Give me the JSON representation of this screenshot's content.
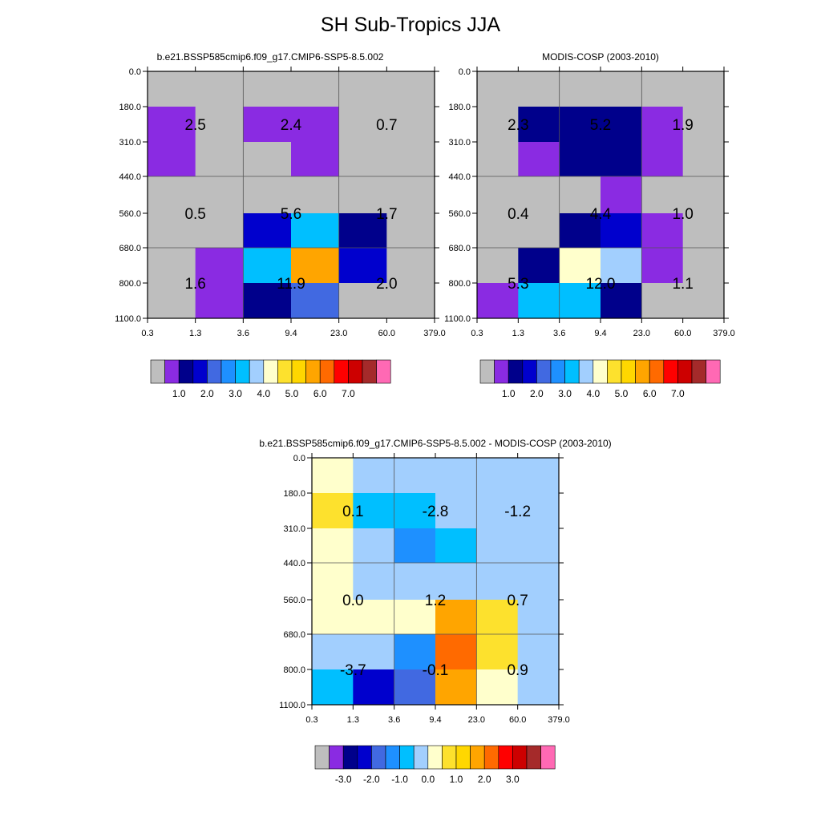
{
  "title": "SH Sub-Tropics JJA",
  "palette": {
    "missing": "#bebebe",
    "colors": [
      "#bebebe",
      "#8a2be2",
      "#00008b",
      "#0000cd",
      "#4169e1",
      "#1e90ff",
      "#00bfff",
      "#a2cffe",
      "#ffffcc",
      "#fde12d",
      "#ffd700",
      "#ffa500",
      "#ff6a00",
      "#ff0000",
      "#cd0000",
      "#a52a2a",
      "#ff69b4"
    ]
  },
  "chart_data": [
    {
      "type": "heatmap",
      "title": "b.e21.BSSP585cmip6.f09_g17.CMIP6-SSP5-8.5.002",
      "x_ticks": [
        "0.3",
        "1.3",
        "3.6",
        "9.4",
        "23.0",
        "60.0",
        "379.0"
      ],
      "y_ticks": [
        "0.0",
        "180.0",
        "310.0",
        "440.0",
        "560.0",
        "680.0",
        "800.0",
        "1100.0"
      ],
      "cells": [
        [
          "#bebebe",
          "#bebebe",
          "#bebebe",
          "#bebebe",
          "#bebebe",
          "#bebebe"
        ],
        [
          "#8a2be2",
          "#bebebe",
          "#8a2be2",
          "#8a2be2",
          "#bebebe",
          "#bebebe"
        ],
        [
          "#8a2be2",
          "#bebebe",
          "#bebebe",
          "#8a2be2",
          "#bebebe",
          "#bebebe"
        ],
        [
          "#bebebe",
          "#bebebe",
          "#bebebe",
          "#bebebe",
          "#bebebe",
          "#bebebe"
        ],
        [
          "#bebebe",
          "#bebebe",
          "#0000cd",
          "#00bfff",
          "#00008b",
          "#bebebe"
        ],
        [
          "#bebebe",
          "#8a2be2",
          "#00bfff",
          "#ffa500",
          "#0000cd",
          "#bebebe"
        ],
        [
          "#bebebe",
          "#8a2be2",
          "#00008b",
          "#4169e1",
          "#bebebe",
          "#bebebe"
        ]
      ],
      "box_values": [
        [
          "2.5",
          "2.4",
          "0.7"
        ],
        [
          "0.5",
          "5.6",
          "1.7"
        ],
        [
          "1.6",
          "11.9",
          "2.0"
        ]
      ],
      "colorbar": {
        "labels": [
          "1.0",
          "2.0",
          "3.0",
          "4.0",
          "5.0",
          "6.0",
          "7.0"
        ]
      }
    },
    {
      "type": "heatmap",
      "title": "MODIS-COSP (2003-2010)",
      "x_ticks": [
        "0.3",
        "1.3",
        "3.6",
        "9.4",
        "23.0",
        "60.0",
        "379.0"
      ],
      "y_ticks": [
        "0.0",
        "180.0",
        "310.0",
        "440.0",
        "560.0",
        "680.0",
        "800.0",
        "1100.0"
      ],
      "cells": [
        [
          "#bebebe",
          "#bebebe",
          "#bebebe",
          "#bebebe",
          "#bebebe",
          "#bebebe"
        ],
        [
          "#bebebe",
          "#00008b",
          "#00008b",
          "#00008b",
          "#8a2be2",
          "#bebebe"
        ],
        [
          "#bebebe",
          "#8a2be2",
          "#00008b",
          "#00008b",
          "#8a2be2",
          "#bebebe"
        ],
        [
          "#bebebe",
          "#bebebe",
          "#bebebe",
          "#8a2be2",
          "#bebebe",
          "#bebebe"
        ],
        [
          "#bebebe",
          "#bebebe",
          "#00008b",
          "#0000cd",
          "#8a2be2",
          "#bebebe"
        ],
        [
          "#bebebe",
          "#00008b",
          "#ffffcc",
          "#a2cffe",
          "#8a2be2",
          "#bebebe"
        ],
        [
          "#8a2be2",
          "#00bfff",
          "#00bfff",
          "#00008b",
          "#bebebe",
          "#bebebe"
        ]
      ],
      "box_values": [
        [
          "2.3",
          "5.2",
          "1.9"
        ],
        [
          "0.4",
          "4.4",
          "1.0"
        ],
        [
          "5.3",
          "12.0",
          "1.1"
        ]
      ],
      "colorbar": {
        "labels": [
          "1.0",
          "2.0",
          "3.0",
          "4.0",
          "5.0",
          "6.0",
          "7.0"
        ]
      }
    },
    {
      "type": "heatmap",
      "title": "b.e21.BSSP585cmip6.f09_g17.CMIP6-SSP5-8.5.002 - MODIS-COSP (2003-2010)",
      "x_ticks": [
        "0.3",
        "1.3",
        "3.6",
        "9.4",
        "23.0",
        "60.0",
        "379.0"
      ],
      "y_ticks": [
        "0.0",
        "180.0",
        "310.0",
        "440.0",
        "560.0",
        "680.0",
        "800.0",
        "1100.0"
      ],
      "cells": [
        [
          "#ffffcc",
          "#a2cffe",
          "#a2cffe",
          "#a2cffe",
          "#a2cffe",
          "#a2cffe"
        ],
        [
          "#fde12d",
          "#00bfff",
          "#00bfff",
          "#a2cffe",
          "#a2cffe",
          "#a2cffe"
        ],
        [
          "#ffffcc",
          "#a2cffe",
          "#1e90ff",
          "#00bfff",
          "#a2cffe",
          "#a2cffe"
        ],
        [
          "#ffffcc",
          "#a2cffe",
          "#a2cffe",
          "#a2cffe",
          "#a2cffe",
          "#a2cffe"
        ],
        [
          "#ffffcc",
          "#ffffcc",
          "#ffffcc",
          "#ffa500",
          "#fde12d",
          "#a2cffe"
        ],
        [
          "#a2cffe",
          "#a2cffe",
          "#1e90ff",
          "#ff6a00",
          "#fde12d",
          "#a2cffe"
        ],
        [
          "#00bfff",
          "#0000cd",
          "#4169e1",
          "#ffa500",
          "#ffffcc",
          "#a2cffe"
        ]
      ],
      "box_values": [
        [
          "0.1",
          "-2.8",
          "-1.2"
        ],
        [
          "0.0",
          "1.2",
          "0.7"
        ],
        [
          "-3.7",
          "-0.1",
          "0.9"
        ]
      ],
      "colorbar": {
        "labels": [
          "-3.0",
          "-2.0",
          "-1.0",
          "0.0",
          "1.0",
          "2.0",
          "3.0"
        ]
      }
    }
  ]
}
